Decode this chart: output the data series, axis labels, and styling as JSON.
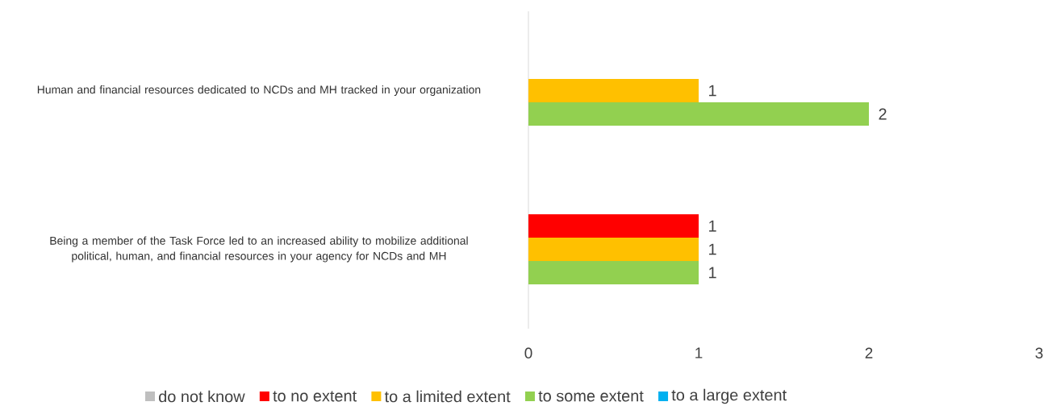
{
  "chart_data": {
    "type": "bar",
    "orientation": "horizontal",
    "categories": [
      "Human and financial resources dedicated to NCDs and MH tracked in your organization",
      "Being a member of the Task Force led to an increased ability to mobilize additional political, human, and financial resources in your agency for NCDs and MH"
    ],
    "series": [
      {
        "name": "do not know",
        "color": "#bfbfbf",
        "values": [
          null,
          null
        ]
      },
      {
        "name": "to no extent",
        "color": "#ff0000",
        "values": [
          null,
          1
        ]
      },
      {
        "name": "to a limited extent",
        "color": "#ffc000",
        "values": [
          1,
          1
        ]
      },
      {
        "name": "to some extent",
        "color": "#92d050",
        "values": [
          2,
          1
        ]
      },
      {
        "name": "to a large extent",
        "color": "#00b0f0",
        "values": [
          null,
          null
        ]
      }
    ],
    "xlim": [
      0,
      3
    ],
    "xticks": [
      0,
      1,
      2,
      3
    ],
    "data_labels": true,
    "legend": "bottom"
  }
}
